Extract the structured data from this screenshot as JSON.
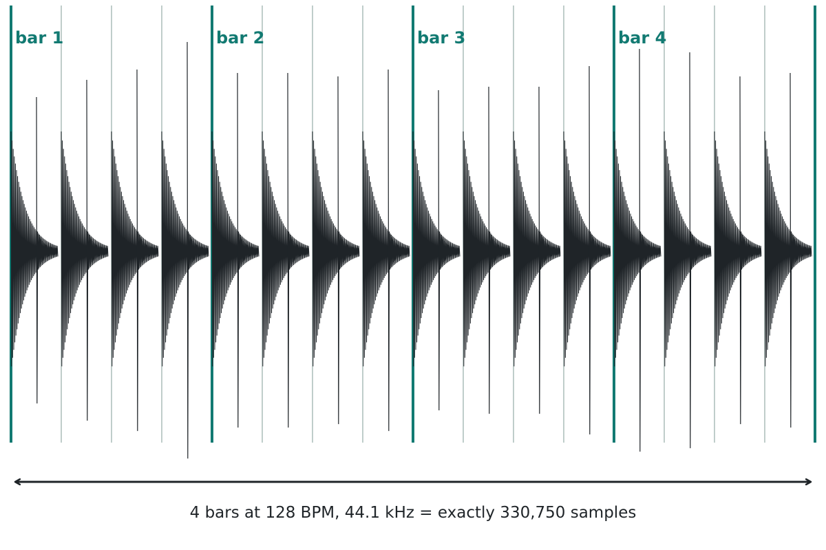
{
  "bars": [
    "bar 1",
    "bar 2",
    "bar 3",
    "bar 4"
  ],
  "caption": "4 bars at 128 BPM, 44.1 kHz = exactly 330,750 samples"
}
